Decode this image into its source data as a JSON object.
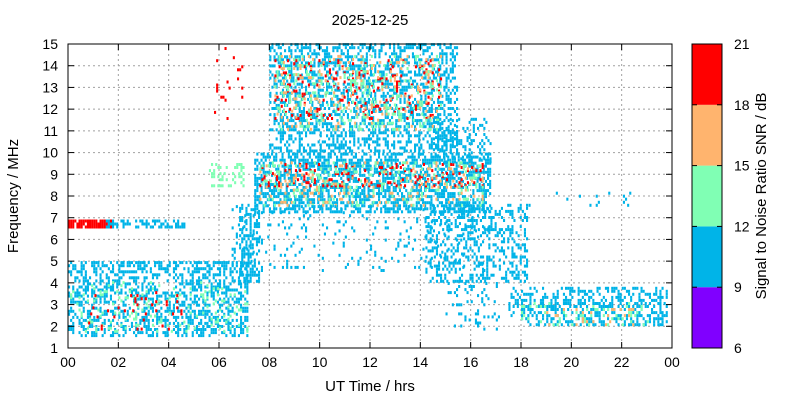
{
  "chart_data": {
    "type": "heatmap",
    "title": "2025-12-25",
    "xlabel": "UT Time / hrs",
    "ylabel": "Frequency / MHz",
    "colorbar_label": "Signal to Noise Ratio SNR / dB",
    "xlim": [
      0,
      24
    ],
    "ylim": [
      1,
      15
    ],
    "x_ticks": [
      "00",
      "02",
      "04",
      "06",
      "08",
      "10",
      "12",
      "14",
      "16",
      "18",
      "20",
      "22",
      "00"
    ],
    "y_ticks": [
      "1",
      "2",
      "3",
      "4",
      "5",
      "6",
      "7",
      "8",
      "9",
      "10",
      "11",
      "12",
      "13",
      "14",
      "15"
    ],
    "grid": true,
    "colorbar": {
      "ticks": [
        "6",
        "9",
        "12",
        "15",
        "18",
        "21"
      ],
      "bins": [
        {
          "from": 6,
          "to": 9,
          "color": "#8000ff"
        },
        {
          "from": 9,
          "to": 12,
          "color": "#00b4e8"
        },
        {
          "from": 12,
          "to": 15,
          "color": "#80ffb4"
        },
        {
          "from": 15,
          "to": 18,
          "color": "#ffb46e"
        },
        {
          "from": 18,
          "to": 21,
          "color": "#ff0000"
        }
      ]
    },
    "regions": [
      {
        "t0": 0.0,
        "t1": 1.7,
        "f0": 6.5,
        "f1": 6.9,
        "snr": 20,
        "density": 0.95
      },
      {
        "t0": 1.5,
        "t1": 4.6,
        "f0": 6.5,
        "f1": 6.8,
        "snr": 10,
        "density": 0.6
      },
      {
        "t0": 0.0,
        "t1": 7.1,
        "f0": 1.5,
        "f1": 5.0,
        "snr": 10.5,
        "density": 0.45
      },
      {
        "t0": 0.0,
        "t1": 7.1,
        "f0": 1.7,
        "f1": 4.0,
        "snr": 14,
        "density": 0.12
      },
      {
        "t0": 0.8,
        "t1": 4.5,
        "f0": 1.8,
        "f1": 3.6,
        "snr": 19.5,
        "density": 0.06
      },
      {
        "t0": 5.6,
        "t1": 7.0,
        "f0": 8.4,
        "f1": 9.4,
        "snr": 12,
        "density": 0.3
      },
      {
        "t0": 5.8,
        "t1": 6.9,
        "f0": 11.5,
        "f1": 15.0,
        "snr": 19,
        "density": 0.06
      },
      {
        "t0": 6.8,
        "t1": 7.6,
        "f0": 4.0,
        "f1": 7.5,
        "snr": 10.5,
        "density": 0.45
      },
      {
        "t0": 7.4,
        "t1": 16.8,
        "f0": 7.2,
        "f1": 10.0,
        "snr": 10.5,
        "density": 0.55
      },
      {
        "t0": 7.6,
        "t1": 16.5,
        "f0": 8.4,
        "f1": 9.4,
        "snr": 19.5,
        "density": 0.18
      },
      {
        "t0": 7.6,
        "t1": 16.5,
        "f0": 7.5,
        "f1": 9.5,
        "snr": 16,
        "density": 0.1
      },
      {
        "t0": 7.6,
        "t1": 16.5,
        "f0": 7.5,
        "f1": 9.5,
        "snr": 13.5,
        "density": 0.12
      },
      {
        "t0": 8.0,
        "t1": 15.5,
        "f0": 10.0,
        "f1": 15.0,
        "snr": 10.5,
        "density": 0.45
      },
      {
        "t0": 8.2,
        "t1": 14.8,
        "f0": 11.5,
        "f1": 14.2,
        "snr": 19.5,
        "density": 0.12
      },
      {
        "t0": 8.2,
        "t1": 14.8,
        "f0": 11.0,
        "f1": 14.5,
        "snr": 16,
        "density": 0.1
      },
      {
        "t0": 8.2,
        "t1": 14.8,
        "f0": 11.0,
        "f1": 14.5,
        "snr": 13.5,
        "density": 0.12
      },
      {
        "t0": 14.5,
        "t1": 16.8,
        "f0": 9.5,
        "f1": 11.5,
        "snr": 10.5,
        "density": 0.3
      },
      {
        "t0": 14.2,
        "t1": 18.2,
        "f0": 4.0,
        "f1": 7.5,
        "snr": 10.5,
        "density": 0.35
      },
      {
        "t0": 15.0,
        "t1": 17.2,
        "f0": 1.8,
        "f1": 4.0,
        "snr": 10.5,
        "density": 0.12
      },
      {
        "t0": 17.5,
        "t1": 23.8,
        "f0": 2.0,
        "f1": 3.8,
        "snr": 10.5,
        "density": 0.4
      },
      {
        "t0": 18.0,
        "t1": 23.0,
        "f0": 2.0,
        "f1": 3.0,
        "snr": 13.5,
        "density": 0.12
      },
      {
        "t0": 19.0,
        "t1": 22.5,
        "f0": 2.0,
        "f1": 2.8,
        "snr": 16.5,
        "density": 0.08
      },
      {
        "t0": 17.8,
        "t1": 22.5,
        "f0": 7.5,
        "f1": 8.2,
        "snr": 10.5,
        "density": 0.05
      },
      {
        "t0": 6.5,
        "t1": 16.8,
        "f0": 4.5,
        "f1": 7.5,
        "snr": 10.5,
        "density": 0.08
      }
    ]
  }
}
